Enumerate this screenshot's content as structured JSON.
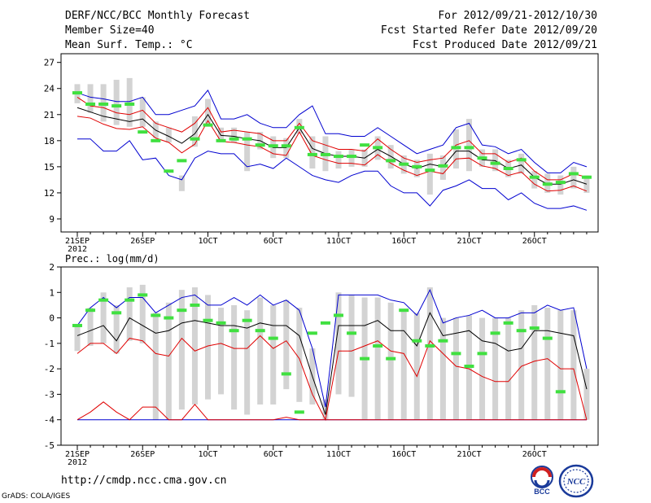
{
  "header": {
    "title": "DERF/NCC/BCC Monthly Forecast",
    "member_size": "Member Size=40",
    "variable": "Mean Surf. Temp.: °C",
    "period": "For 2012/09/21-2012/10/30",
    "refer_date": "Fcst Started Refer Date 2012/09/20",
    "produced_date": "Fcst Produced Date 2012/09/21"
  },
  "footer": {
    "url": "http://cmdp.ncc.cma.gov.cn",
    "credit": "GrADS: COLA/IGES"
  },
  "logos": {
    "bcc": "BCC",
    "ncc": "NCC"
  },
  "colors": {
    "ensemble_mean": "#000000",
    "percentile_band": "#e00000",
    "envelope": "#0000d0",
    "box": "#d3d3d3",
    "median_marker": "#40e040"
  },
  "chart_data": [
    {
      "type": "line",
      "title": "Mean Surf. Temp.: °C",
      "x_tick_labels": [
        "21SEP",
        "26SEP",
        "1OCT",
        "6OCT",
        "11OCT",
        "16OCT",
        "21OCT",
        "26OCT"
      ],
      "x_year_label": "2012",
      "x_start_day": 0,
      "x_days": 40,
      "ylim": [
        7.5,
        28
      ],
      "yticks": [
        9,
        12,
        15,
        18,
        21,
        24,
        27
      ],
      "series": [
        {
          "name": "max",
          "color_key": "envelope",
          "values": [
            23.5,
            23.0,
            22.8,
            22.5,
            22.5,
            23.0,
            21.0,
            21.0,
            21.5,
            22.0,
            23.8,
            20.5,
            20.5,
            21.0,
            20.0,
            19.5,
            19.5,
            21.0,
            22.0,
            18.8,
            18.8,
            18.5,
            18.5,
            19.5,
            18.5,
            17.5,
            16.5,
            17.0,
            17.5,
            19.5,
            20.0,
            17.5,
            17.3,
            16.5,
            17.0,
            15.5,
            14.3,
            14.3,
            15.5,
            15.0
          ]
        },
        {
          "name": "p90",
          "color_key": "percentile_band",
          "values": [
            23.0,
            22.0,
            21.8,
            21.2,
            21.0,
            21.5,
            20.0,
            19.5,
            19.0,
            20.0,
            21.8,
            19.0,
            19.2,
            19.0,
            18.8,
            18.0,
            18.0,
            20.0,
            18.0,
            17.5,
            17.0,
            17.0,
            16.8,
            18.2,
            17.0,
            16.0,
            15.5,
            15.8,
            16.0,
            17.5,
            18.0,
            16.5,
            16.5,
            15.5,
            16.0,
            14.5,
            13.5,
            13.5,
            14.2,
            13.8
          ]
        },
        {
          "name": "mean",
          "color_key": "ensemble_mean",
          "values": [
            21.8,
            21.3,
            20.8,
            20.5,
            20.2,
            20.5,
            19.2,
            18.5,
            17.7,
            18.8,
            21.0,
            18.6,
            18.5,
            18.2,
            18.0,
            17.2,
            17.2,
            19.5,
            17.1,
            16.5,
            16.2,
            16.2,
            16.0,
            17.0,
            16.2,
            15.3,
            14.8,
            15.3,
            15.0,
            16.8,
            16.8,
            15.8,
            15.7,
            14.8,
            15.2,
            13.8,
            13.0,
            13.0,
            13.5,
            13.0
          ]
        },
        {
          "name": "p10",
          "color_key": "percentile_band",
          "values": [
            20.8,
            20.6,
            19.9,
            19.4,
            19.3,
            19.6,
            18.3,
            17.8,
            16.6,
            17.6,
            20.3,
            17.9,
            17.8,
            17.5,
            17.3,
            16.5,
            16.3,
            19.0,
            16.3,
            15.8,
            15.4,
            15.4,
            15.2,
            16.4,
            15.4,
            14.6,
            14.0,
            14.5,
            14.2,
            15.9,
            16.0,
            15.1,
            14.8,
            14.0,
            14.4,
            13.0,
            12.2,
            12.3,
            12.8,
            12.2
          ]
        },
        {
          "name": "min",
          "color_key": "envelope",
          "values": [
            18.2,
            18.2,
            16.8,
            16.8,
            18.0,
            15.8,
            16.0,
            14.0,
            13.5,
            16.0,
            16.8,
            16.5,
            16.5,
            15.0,
            15.3,
            14.8,
            16.0,
            15.0,
            14.0,
            13.5,
            13.2,
            14.0,
            14.5,
            14.5,
            12.8,
            12.0,
            12.0,
            10.5,
            12.3,
            12.8,
            13.5,
            12.5,
            12.5,
            11.2,
            12.0,
            10.8,
            10.2,
            10.2,
            10.5,
            10.0
          ]
        }
      ],
      "boxes": {
        "low": [
          22.3,
          21.2,
          20.2,
          19.8,
          19.6,
          19.6,
          18.3,
          17.8,
          12.2,
          17.3,
          20.0,
          17.8,
          17.8,
          14.5,
          17.0,
          16.0,
          16.0,
          18.8,
          14.8,
          14.5,
          14.8,
          15.0,
          15.0,
          15.8,
          14.8,
          14.2,
          13.8,
          11.8,
          13.5,
          14.8,
          14.5,
          15.0,
          14.5,
          13.8,
          14.2,
          12.5,
          12.0,
          11.8,
          12.5,
          12.0
        ],
        "high": [
          24.5,
          24.5,
          24.5,
          25.0,
          25.2,
          23.0,
          20.2,
          19.5,
          14.0,
          20.8,
          22.8,
          19.5,
          19.5,
          19.0,
          19.0,
          18.5,
          18.3,
          20.5,
          18.5,
          18.5,
          16.8,
          17.0,
          17.0,
          18.5,
          17.5,
          16.3,
          15.8,
          16.5,
          16.3,
          19.3,
          20.5,
          17.0,
          17.0,
          15.8,
          16.5,
          14.5,
          14.2,
          14.0,
          15.0,
          14.0
        ]
      },
      "markers": [
        23.5,
        22.2,
        22.2,
        22.0,
        22.2,
        19.0,
        18.0,
        14.5,
        15.7,
        18.2,
        19.8,
        18.0,
        18.2,
        18.2,
        17.5,
        17.4,
        17.4,
        19.5,
        16.4,
        16.4,
        16.2,
        16.2,
        17.5,
        17.2,
        15.7,
        15.3,
        15.0,
        14.6,
        15.1,
        17.2,
        17.2,
        16.0,
        15.4,
        14.8,
        15.8,
        13.8,
        13.0,
        13.2,
        14.2,
        13.8
      ]
    },
    {
      "type": "line",
      "title": "Prec.: log(mm/d)",
      "x_tick_labels": [
        "21SEP",
        "26SEP",
        "1OCT",
        "6OCT",
        "11OCT",
        "16OCT",
        "21OCT",
        "26OCT"
      ],
      "x_year_label": "2012",
      "x_start_day": 0,
      "x_days": 40,
      "ylim": [
        -5,
        2
      ],
      "yticks": [
        -5,
        -4,
        -3,
        -2,
        -1,
        0,
        1,
        2
      ],
      "series": [
        {
          "name": "max",
          "color_key": "envelope",
          "values": [
            -0.3,
            0.4,
            0.8,
            0.4,
            0.8,
            0.8,
            0.2,
            0.5,
            0.8,
            0.9,
            0.5,
            0.5,
            0.8,
            0.5,
            0.9,
            0.5,
            0.7,
            0.3,
            -1.2,
            -3.5,
            0.9,
            0.9,
            0.9,
            0.9,
            0.7,
            0.6,
            0.1,
            1.1,
            -0.2,
            0.0,
            0.1,
            0.3,
            0.0,
            0.0,
            0.2,
            0.2,
            0.5,
            0.3,
            0.4,
            -2.0
          ]
        },
        {
          "name": "mean",
          "color_key": "ensemble_mean",
          "values": [
            -0.7,
            -0.5,
            -0.3,
            -0.9,
            0.0,
            -0.3,
            -0.6,
            -0.5,
            -0.2,
            -0.1,
            -0.2,
            -0.3,
            -0.3,
            -0.4,
            -0.2,
            -0.3,
            -0.3,
            -0.7,
            -2.3,
            -3.8,
            -0.3,
            -0.3,
            -0.3,
            -0.1,
            -0.5,
            -0.5,
            -1.1,
            0.2,
            -0.7,
            -0.6,
            -0.5,
            -0.9,
            -1.0,
            -1.3,
            -1.2,
            -0.5,
            -0.5,
            -0.6,
            -0.7,
            -2.8
          ]
        },
        {
          "name": "p10",
          "color_key": "percentile_band",
          "values": [
            -1.4,
            -1.0,
            -1.0,
            -1.4,
            -0.8,
            -0.9,
            -1.4,
            -1.5,
            -0.8,
            -1.3,
            -1.1,
            -1.0,
            -1.2,
            -1.2,
            -0.7,
            -1.2,
            -0.9,
            -1.6,
            -3.0,
            -4.0,
            -1.3,
            -1.3,
            -1.1,
            -0.9,
            -1.3,
            -1.4,
            -2.3,
            -0.9,
            -1.4,
            -1.9,
            -2.0,
            -2.3,
            -2.5,
            -2.5,
            -1.9,
            -1.7,
            -1.6,
            -2.0,
            -2.0,
            -4.0
          ]
        },
        {
          "name": "min",
          "color_key": "envelope",
          "values": [
            -4.0,
            -4.0,
            -4.0,
            -4.0,
            -4.0,
            -4.0,
            -4.0,
            -4.0,
            -4.0,
            -4.0,
            -4.0,
            -4.0,
            -4.0,
            -4.0,
            -4.0,
            -4.0,
            -4.0,
            -4.0,
            -4.0,
            -4.0,
            -4.0,
            -4.0,
            -4.0,
            -4.0,
            -4.0,
            -4.0,
            -4.0,
            -4.0,
            -4.0,
            -4.0,
            -4.0,
            -4.0,
            -4.0,
            -4.0,
            -4.0,
            -4.0,
            -4.0,
            -4.0,
            -4.0,
            -4.0
          ]
        },
        {
          "name": "p90-low",
          "color_key": "percentile_band",
          "values": [
            -4.0,
            -3.7,
            -3.3,
            -3.7,
            -4.0,
            -3.5,
            -3.5,
            -4.0,
            -4.0,
            -3.4,
            -4.0,
            -4.0,
            -4.0,
            -4.0,
            -4.0,
            -4.0,
            -3.9,
            -4.0,
            -4.0,
            -4.0,
            -4.0,
            -4.0,
            -4.0,
            -4.0,
            -4.0,
            -4.0,
            -4.0,
            -4.0,
            -4.0,
            -4.0,
            -4.0,
            -4.0,
            -4.0,
            -4.0,
            -4.0,
            -4.0,
            -4.0,
            -4.0,
            -4.0,
            -4.0
          ]
        }
      ],
      "boxes": {
        "low": [
          -1.3,
          -1.1,
          -1.0,
          -1.4,
          -0.9,
          -1.0,
          -4.0,
          -4.0,
          -3.6,
          -3.4,
          -3.2,
          -3.0,
          -3.6,
          -3.8,
          -3.4,
          -3.4,
          -2.8,
          -3.3,
          -3.4,
          -4.0,
          -3.0,
          -3.1,
          -4.0,
          -4.0,
          -4.0,
          -4.0,
          -4.0,
          -4.0,
          -4.0,
          -4.0,
          -4.0,
          -4.0,
          -4.0,
          -4.0,
          -4.0,
          -4.0,
          -4.0,
          -4.0,
          -4.0,
          -4.0
        ],
        "high": [
          -0.3,
          0.4,
          1.0,
          0.5,
          1.2,
          1.3,
          0.2,
          0.6,
          1.1,
          1.2,
          0.9,
          0.4,
          0.5,
          0.3,
          0.8,
          0.5,
          0.7,
          0.4,
          -1.2,
          -3.2,
          1.0,
          0.9,
          0.8,
          0.8,
          0.6,
          0.3,
          0.2,
          1.2,
          0.0,
          0.0,
          0.1,
          0.0,
          0.0,
          0.0,
          0.3,
          0.5,
          0.4,
          0.3,
          0.3,
          -2.0
        ]
      },
      "markers": [
        -0.3,
        0.3,
        0.7,
        0.2,
        0.7,
        0.9,
        0.1,
        0.0,
        0.3,
        0.5,
        -0.1,
        -0.2,
        -0.5,
        -0.1,
        -0.5,
        -0.8,
        -2.2,
        -3.7,
        -0.6,
        -0.2,
        0.1,
        -0.6,
        -1.6,
        -1.1,
        -1.6,
        0.3,
        -0.9,
        -1.1,
        -0.9,
        -1.4,
        -1.9,
        -1.4,
        -0.6,
        -0.2,
        -0.5,
        -0.4,
        -0.8,
        -2.9,
        null,
        null
      ]
    }
  ]
}
